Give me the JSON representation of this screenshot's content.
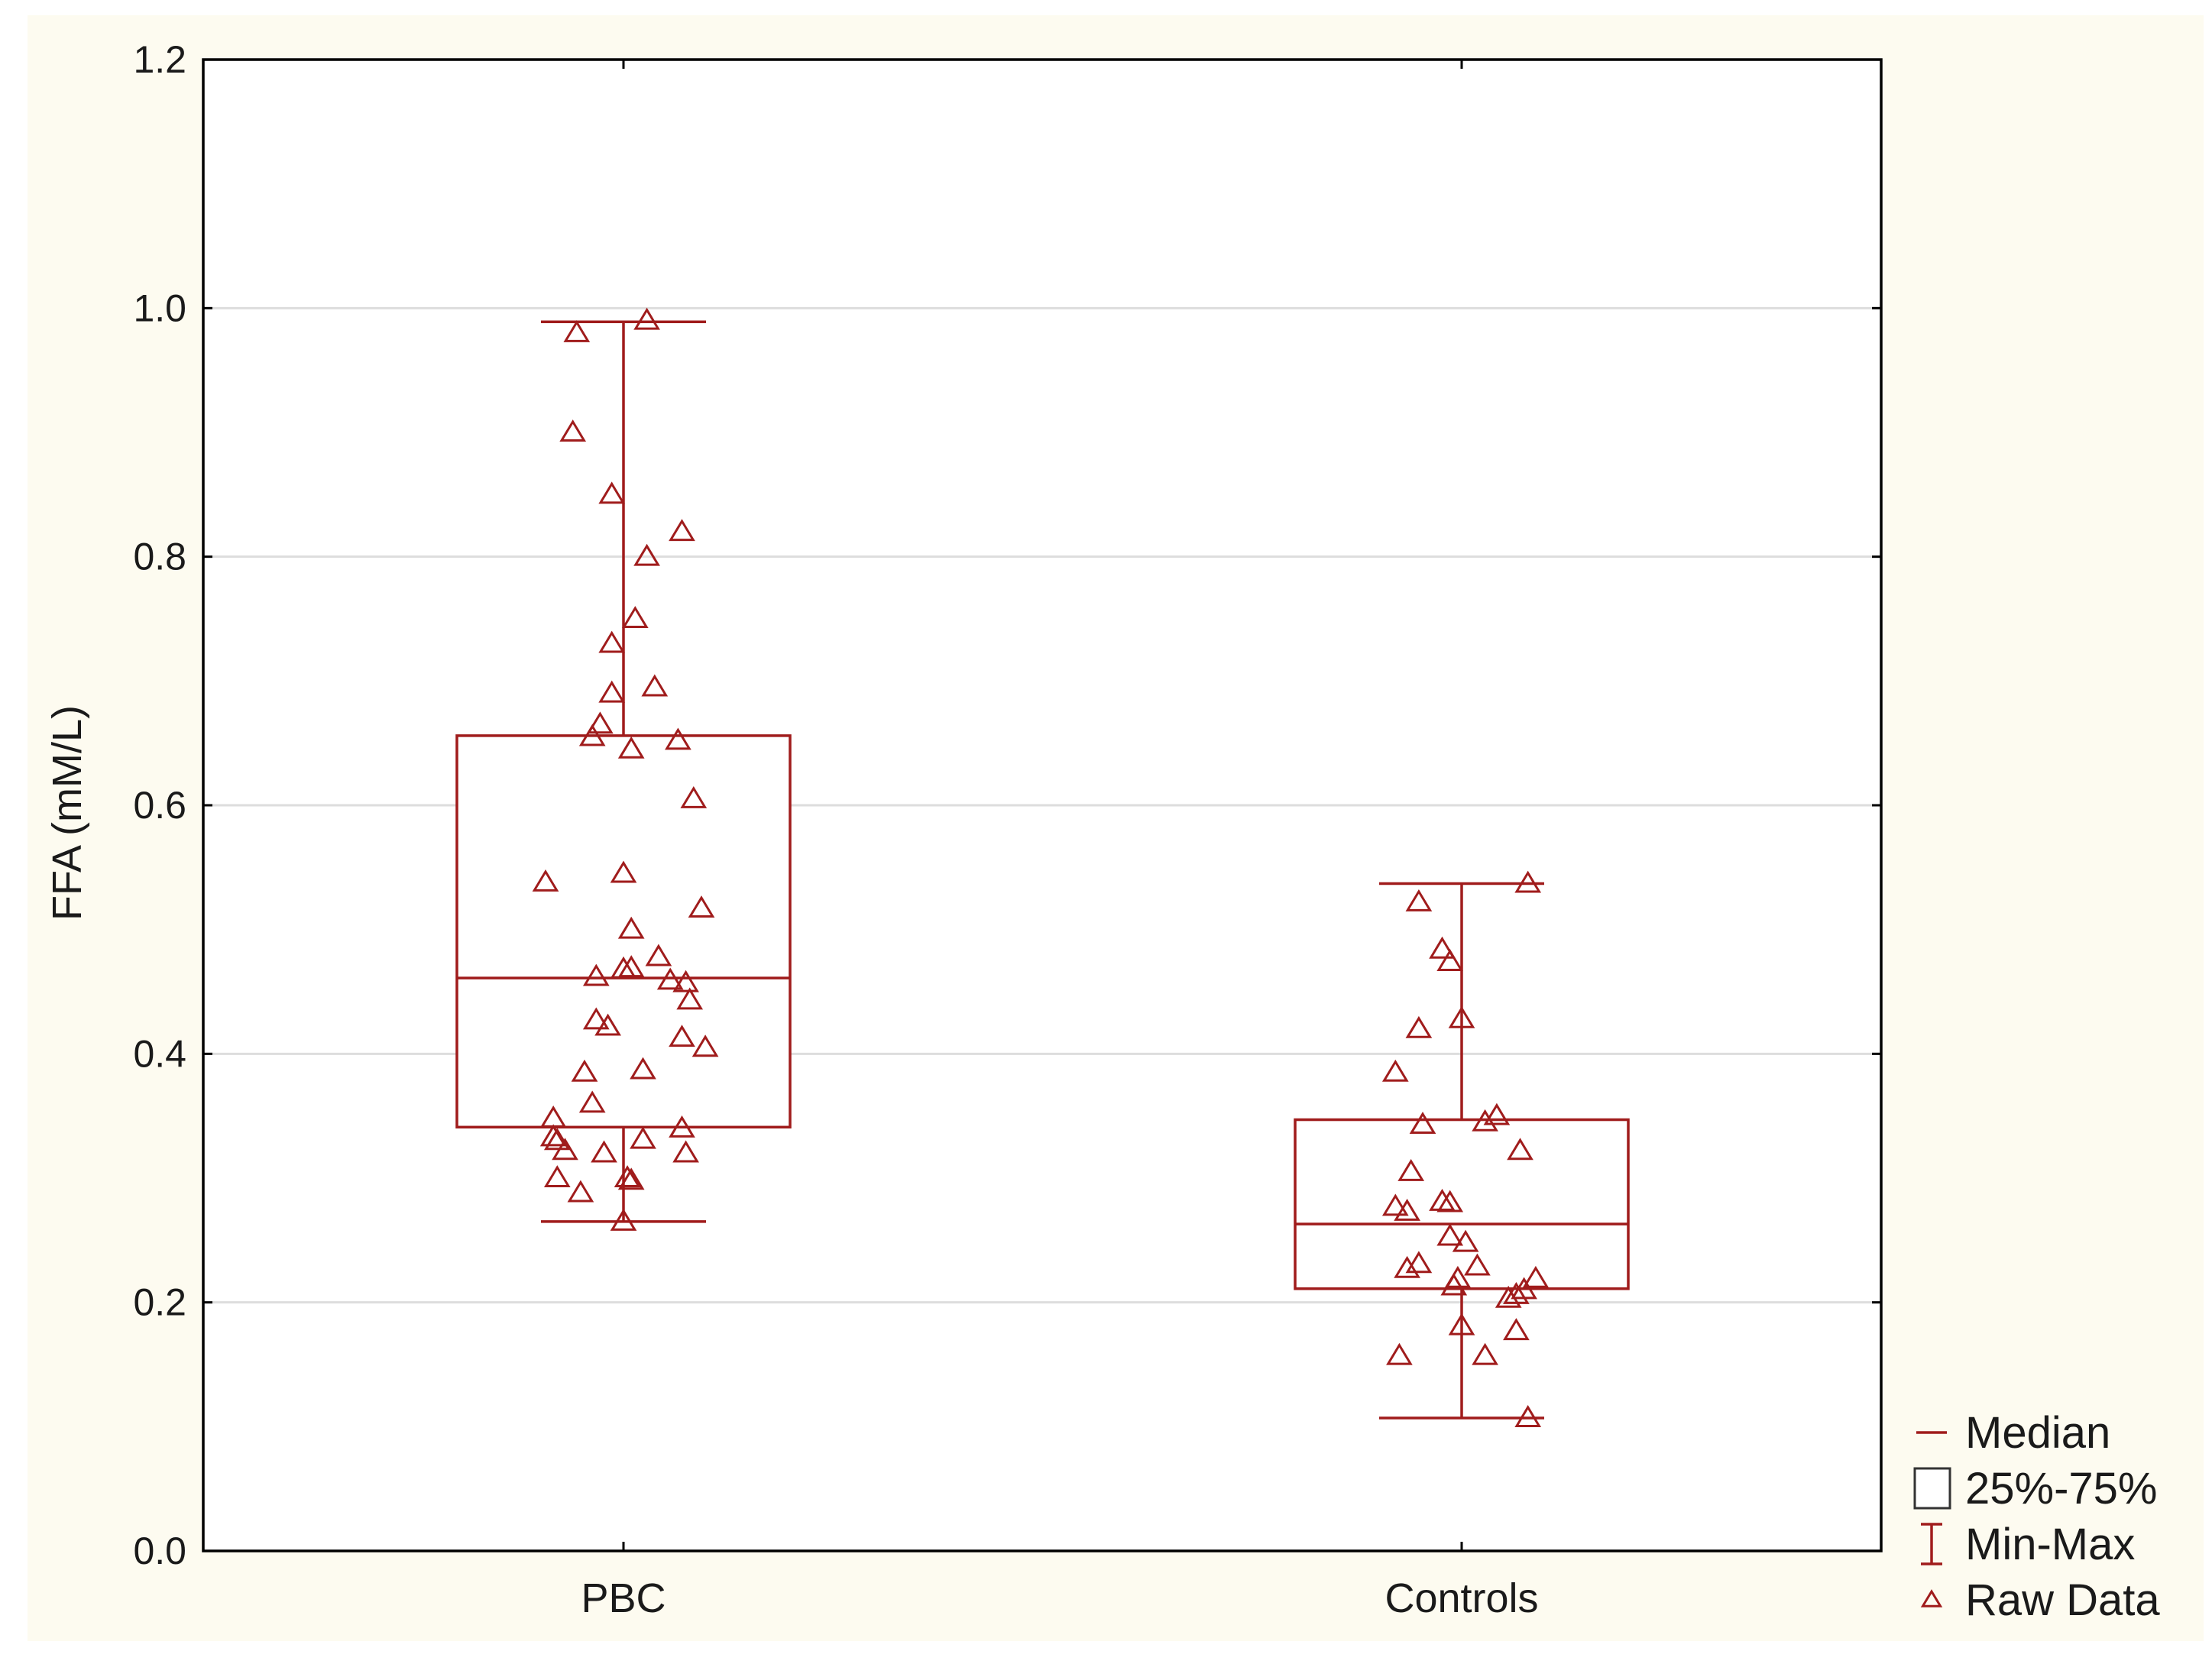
{
  "chart_data": {
    "type": "box",
    "title": "",
    "xlabel": "",
    "ylabel": "FFA (mM/L)",
    "ylim": [
      0,
      1.2
    ],
    "yticks": [
      "0.0",
      "0.2",
      "0.4",
      "0.6",
      "0.8",
      "1.0",
      "1.2"
    ],
    "grid": true,
    "colors": {
      "series": "#a01c1c",
      "grid": "#dddddd",
      "axis": "#000000",
      "background": "#fdfbf0"
    },
    "legend": {
      "position": "bottom-right",
      "entries": [
        {
          "key": "median",
          "label": "Median"
        },
        {
          "key": "iqr",
          "label": "25%-75%"
        },
        {
          "key": "range",
          "label": "Min-Max"
        },
        {
          "key": "raw",
          "label": "Raw Data"
        }
      ]
    },
    "groups": [
      {
        "name": "PBC",
        "min": 0.265,
        "q1": 0.341,
        "median": 0.461,
        "q3": 0.656,
        "max": 0.989,
        "raw": [
          [
            -0.12,
            0.98
          ],
          [
            0.06,
            0.99
          ],
          [
            -0.13,
            0.9
          ],
          [
            -0.03,
            0.85
          ],
          [
            0.15,
            0.82
          ],
          [
            0.06,
            0.8
          ],
          [
            0.03,
            0.75
          ],
          [
            -0.03,
            0.73
          ],
          [
            -0.03,
            0.69
          ],
          [
            0.08,
            0.695
          ],
          [
            -0.06,
            0.665
          ],
          [
            -0.08,
            0.655
          ],
          [
            0.02,
            0.645
          ],
          [
            0.14,
            0.652
          ],
          [
            0.18,
            0.605
          ],
          [
            -0.2,
            0.538
          ],
          [
            0.0,
            0.545
          ],
          [
            0.2,
            0.517
          ],
          [
            0.02,
            0.5
          ],
          [
            0.09,
            0.478
          ],
          [
            0.0,
            0.468
          ],
          [
            0.02,
            0.469
          ],
          [
            -0.07,
            0.462
          ],
          [
            0.12,
            0.459
          ],
          [
            0.16,
            0.457
          ],
          [
            0.17,
            0.443
          ],
          [
            -0.07,
            0.427
          ],
          [
            -0.04,
            0.422
          ],
          [
            0.15,
            0.413
          ],
          [
            0.21,
            0.405
          ],
          [
            -0.1,
            0.385
          ],
          [
            0.05,
            0.387
          ],
          [
            -0.08,
            0.36
          ],
          [
            -0.18,
            0.348
          ],
          [
            0.15,
            0.34
          ],
          [
            -0.18,
            0.333
          ],
          [
            -0.17,
            0.33
          ],
          [
            0.05,
            0.331
          ],
          [
            -0.15,
            0.322
          ],
          [
            -0.05,
            0.32
          ],
          [
            0.16,
            0.32
          ],
          [
            -0.17,
            0.3
          ],
          [
            0.01,
            0.3
          ],
          [
            0.02,
            0.298
          ],
          [
            -0.11,
            0.288
          ],
          [
            0.0,
            0.265
          ]
        ]
      },
      {
        "name": "Controls",
        "min": 0.107,
        "q1": 0.211,
        "median": 0.263,
        "q3": 0.347,
        "max": 0.537,
        "raw": [
          [
            -0.11,
            0.522
          ],
          [
            0.17,
            0.537
          ],
          [
            -0.05,
            0.484
          ],
          [
            -0.03,
            0.474
          ],
          [
            0.0,
            0.428
          ],
          [
            -0.11,
            0.42
          ],
          [
            -0.17,
            0.385
          ],
          [
            0.09,
            0.35
          ],
          [
            0.06,
            0.345
          ],
          [
            -0.1,
            0.343
          ],
          [
            0.15,
            0.322
          ],
          [
            -0.13,
            0.305
          ],
          [
            -0.05,
            0.281
          ],
          [
            -0.03,
            0.28
          ],
          [
            -0.17,
            0.277
          ],
          [
            -0.14,
            0.273
          ],
          [
            -0.03,
            0.253
          ],
          [
            0.01,
            0.248
          ],
          [
            -0.11,
            0.231
          ],
          [
            -0.14,
            0.227
          ],
          [
            0.04,
            0.229
          ],
          [
            0.19,
            0.219
          ],
          [
            -0.01,
            0.219
          ],
          [
            -0.02,
            0.213
          ],
          [
            0.16,
            0.21
          ],
          [
            0.14,
            0.206
          ],
          [
            0.12,
            0.203
          ],
          [
            0.0,
            0.181
          ],
          [
            0.14,
            0.177
          ],
          [
            -0.16,
            0.157
          ],
          [
            0.06,
            0.157
          ],
          [
            0.17,
            0.107
          ]
        ]
      }
    ]
  }
}
